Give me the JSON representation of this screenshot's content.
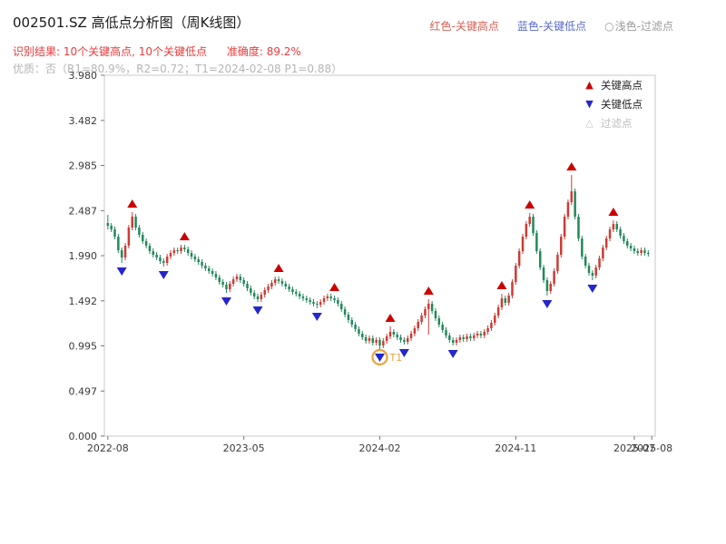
{
  "page": {
    "title": "002501.SZ 高低点分析图（周K线图）"
  },
  "header_legend": {
    "high": "红色-关键高点",
    "low": "蓝色-关键低点",
    "filter_icon": "○",
    "filter": "浅色-过滤点"
  },
  "subtitle": {
    "recognition": "识别结果: 10个关键高点, 10个关键低点",
    "accuracy": "准确度: 89.2%",
    "quality": "优质：否（R1=80.9%，R2=0.72；T1=2024-02-08 P1=0.88）"
  },
  "plot_legend": {
    "high": "关键高点",
    "low": "关键低点",
    "filtered": "过滤点"
  },
  "colors": {
    "result_red": "#e83b3b",
    "muted_gray": "#b5b5b5",
    "legend_high_red": "#d96055",
    "legend_low_blue": "#5a6ad0",
    "legend_filter_gray": "#9a9a9a",
    "marker_high": "#cc0000",
    "marker_low": "#2626cc",
    "filtered_orange": "#eda23a",
    "candle_up": "#cc3b33",
    "candle_down": "#22895a",
    "axis_frame": "#c9c9c9",
    "tick_text": "#3a3a3a"
  },
  "chart_data": {
    "type": "candlestick",
    "title": "002501.SZ 高低点分析图（周K线图）",
    "symbol": "002501.SZ",
    "interval": "weekly",
    "ylim": [
      0,
      3.98
    ],
    "y_ticks": [
      "0.000",
      "0.497",
      "0.995",
      "1.492",
      "1.990",
      "2.487",
      "2.985",
      "3.482",
      "3.980"
    ],
    "x_ticks": [
      {
        "week": 0,
        "label": "2022-08"
      },
      {
        "week": 39,
        "label": "2023-05"
      },
      {
        "week": 78,
        "label": "2024-02"
      },
      {
        "week": 117,
        "label": "2024-11"
      },
      {
        "week": 151,
        "label": "2025-07"
      },
      {
        "week": 156,
        "label": "2025-08"
      }
    ],
    "candles": [
      [
        2.35,
        2.44,
        2.28,
        2.32
      ],
      [
        2.32,
        2.35,
        2.25,
        2.28
      ],
      [
        2.28,
        2.31,
        2.17,
        2.2
      ],
      [
        2.2,
        2.23,
        2.02,
        2.05
      ],
      [
        2.05,
        2.08,
        1.91,
        1.97
      ],
      [
        1.97,
        2.13,
        1.94,
        2.1
      ],
      [
        2.1,
        2.33,
        2.07,
        2.3
      ],
      [
        2.3,
        2.47,
        2.27,
        2.42
      ],
      [
        2.42,
        2.45,
        2.27,
        2.3
      ],
      [
        2.3,
        2.33,
        2.19,
        2.22
      ],
      [
        2.22,
        2.25,
        2.12,
        2.15
      ],
      [
        2.15,
        2.18,
        2.07,
        2.1
      ],
      [
        2.1,
        2.13,
        2.01,
        2.04
      ],
      [
        2.04,
        2.07,
        1.97,
        2.0
      ],
      [
        2.0,
        2.03,
        1.94,
        1.97
      ],
      [
        1.97,
        2.0,
        1.9,
        1.93
      ],
      [
        1.93,
        1.96,
        1.87,
        1.91
      ],
      [
        1.91,
        2.01,
        1.88,
        1.98
      ],
      [
        1.98,
        2.05,
        1.95,
        2.02
      ],
      [
        2.02,
        2.08,
        1.99,
        2.05
      ],
      [
        2.05,
        2.08,
        2.01,
        2.04
      ],
      [
        2.04,
        2.11,
        2.01,
        2.08
      ],
      [
        2.08,
        2.11,
        2.03,
        2.06
      ],
      [
        2.06,
        2.09,
        1.99,
        2.02
      ],
      [
        2.02,
        2.05,
        1.95,
        1.98
      ],
      [
        1.98,
        2.01,
        1.92,
        1.95
      ],
      [
        1.95,
        1.98,
        1.89,
        1.92
      ],
      [
        1.92,
        1.95,
        1.85,
        1.88
      ],
      [
        1.88,
        1.91,
        1.82,
        1.85
      ],
      [
        1.85,
        1.88,
        1.79,
        1.82
      ],
      [
        1.82,
        1.85,
        1.76,
        1.79
      ],
      [
        1.79,
        1.82,
        1.72,
        1.75
      ],
      [
        1.75,
        1.78,
        1.67,
        1.7
      ],
      [
        1.7,
        1.73,
        1.64,
        1.67
      ],
      [
        1.67,
        1.7,
        1.58,
        1.62
      ],
      [
        1.62,
        1.71,
        1.59,
        1.68
      ],
      [
        1.68,
        1.76,
        1.65,
        1.73
      ],
      [
        1.73,
        1.79,
        1.7,
        1.76
      ],
      [
        1.76,
        1.79,
        1.69,
        1.72
      ],
      [
        1.72,
        1.75,
        1.65,
        1.68
      ],
      [
        1.68,
        1.71,
        1.6,
        1.63
      ],
      [
        1.63,
        1.66,
        1.55,
        1.58
      ],
      [
        1.58,
        1.61,
        1.51,
        1.54
      ],
      [
        1.54,
        1.57,
        1.48,
        1.51
      ],
      [
        1.51,
        1.59,
        1.48,
        1.56
      ],
      [
        1.56,
        1.64,
        1.53,
        1.61
      ],
      [
        1.61,
        1.68,
        1.58,
        1.65
      ],
      [
        1.65,
        1.72,
        1.62,
        1.69
      ],
      [
        1.69,
        1.76,
        1.66,
        1.73
      ],
      [
        1.73,
        1.76,
        1.68,
        1.71
      ],
      [
        1.71,
        1.74,
        1.65,
        1.68
      ],
      [
        1.68,
        1.71,
        1.62,
        1.65
      ],
      [
        1.65,
        1.68,
        1.59,
        1.62
      ],
      [
        1.62,
        1.65,
        1.56,
        1.59
      ],
      [
        1.59,
        1.62,
        1.54,
        1.57
      ],
      [
        1.57,
        1.6,
        1.51,
        1.54
      ],
      [
        1.54,
        1.57,
        1.49,
        1.52
      ],
      [
        1.52,
        1.55,
        1.47,
        1.5
      ],
      [
        1.5,
        1.53,
        1.45,
        1.48
      ],
      [
        1.48,
        1.51,
        1.43,
        1.46
      ],
      [
        1.46,
        1.49,
        1.41,
        1.45
      ],
      [
        1.45,
        1.51,
        1.42,
        1.48
      ],
      [
        1.48,
        1.55,
        1.45,
        1.52
      ],
      [
        1.52,
        1.57,
        1.49,
        1.54
      ],
      [
        1.54,
        1.57,
        1.49,
        1.52
      ],
      [
        1.52,
        1.55,
        1.47,
        1.5
      ],
      [
        1.5,
        1.53,
        1.43,
        1.46
      ],
      [
        1.46,
        1.49,
        1.37,
        1.4
      ],
      [
        1.4,
        1.43,
        1.31,
        1.34
      ],
      [
        1.34,
        1.37,
        1.25,
        1.28
      ],
      [
        1.28,
        1.31,
        1.2,
        1.23
      ],
      [
        1.23,
        1.26,
        1.15,
        1.18
      ],
      [
        1.18,
        1.21,
        1.1,
        1.13
      ],
      [
        1.13,
        1.16,
        1.06,
        1.09
      ],
      [
        1.09,
        1.12,
        1.02,
        1.05
      ],
      [
        1.05,
        1.11,
        1.02,
        1.08
      ],
      [
        1.08,
        1.11,
        1.0,
        1.03
      ],
      [
        1.03,
        1.09,
        1.0,
        1.06
      ],
      [
        1.06,
        1.09,
        0.96,
        1.0
      ],
      [
        1.0,
        1.08,
        0.97,
        1.05
      ],
      [
        1.05,
        1.13,
        1.02,
        1.1
      ],
      [
        1.1,
        1.21,
        1.07,
        1.15
      ],
      [
        1.15,
        1.18,
        1.09,
        1.12
      ],
      [
        1.12,
        1.15,
        1.06,
        1.09
      ],
      [
        1.09,
        1.12,
        1.03,
        1.06
      ],
      [
        1.06,
        1.09,
        1.01,
        1.04
      ],
      [
        1.04,
        1.11,
        1.01,
        1.08
      ],
      [
        1.08,
        1.16,
        1.05,
        1.13
      ],
      [
        1.13,
        1.22,
        1.1,
        1.19
      ],
      [
        1.19,
        1.29,
        1.16,
        1.26
      ],
      [
        1.26,
        1.36,
        1.23,
        1.33
      ],
      [
        1.33,
        1.43,
        1.3,
        1.4
      ],
      [
        1.4,
        1.51,
        1.12,
        1.46
      ],
      [
        1.46,
        1.49,
        1.35,
        1.38
      ],
      [
        1.38,
        1.41,
        1.27,
        1.3
      ],
      [
        1.3,
        1.33,
        1.2,
        1.23
      ],
      [
        1.23,
        1.26,
        1.14,
        1.17
      ],
      [
        1.17,
        1.2,
        1.08,
        1.11
      ],
      [
        1.11,
        1.14,
        1.03,
        1.06
      ],
      [
        1.06,
        1.09,
        1.0,
        1.03
      ],
      [
        1.03,
        1.09,
        1.0,
        1.06
      ],
      [
        1.06,
        1.12,
        1.03,
        1.09
      ],
      [
        1.09,
        1.12,
        1.04,
        1.07
      ],
      [
        1.07,
        1.13,
        1.04,
        1.1
      ],
      [
        1.1,
        1.13,
        1.05,
        1.08
      ],
      [
        1.08,
        1.14,
        1.05,
        1.11
      ],
      [
        1.11,
        1.16,
        1.08,
        1.13
      ],
      [
        1.13,
        1.16,
        1.08,
        1.11
      ],
      [
        1.11,
        1.18,
        1.08,
        1.15
      ],
      [
        1.15,
        1.22,
        1.12,
        1.19
      ],
      [
        1.19,
        1.28,
        1.16,
        1.25
      ],
      [
        1.25,
        1.36,
        1.22,
        1.33
      ],
      [
        1.33,
        1.45,
        1.3,
        1.42
      ],
      [
        1.42,
        1.57,
        1.39,
        1.52
      ],
      [
        1.52,
        1.55,
        1.44,
        1.47
      ],
      [
        1.47,
        1.58,
        1.44,
        1.55
      ],
      [
        1.55,
        1.73,
        1.52,
        1.7
      ],
      [
        1.7,
        1.91,
        1.67,
        1.88
      ],
      [
        1.88,
        2.07,
        1.85,
        2.04
      ],
      [
        2.04,
        2.23,
        2.01,
        2.2
      ],
      [
        2.2,
        2.37,
        2.17,
        2.34
      ],
      [
        2.34,
        2.46,
        2.31,
        2.42
      ],
      [
        2.42,
        2.45,
        2.21,
        2.24
      ],
      [
        2.24,
        2.27,
        2.01,
        2.04
      ],
      [
        2.04,
        2.07,
        1.83,
        1.86
      ],
      [
        1.86,
        1.89,
        1.69,
        1.72
      ],
      [
        1.72,
        1.75,
        1.55,
        1.6
      ],
      [
        1.6,
        1.71,
        1.57,
        1.68
      ],
      [
        1.68,
        1.85,
        1.65,
        1.82
      ],
      [
        1.82,
        2.03,
        1.79,
        2.0
      ],
      [
        2.0,
        2.23,
        1.97,
        2.2
      ],
      [
        2.2,
        2.45,
        2.17,
        2.42
      ],
      [
        2.42,
        2.61,
        2.39,
        2.58
      ],
      [
        2.58,
        2.88,
        2.55,
        2.7
      ],
      [
        2.7,
        2.73,
        2.39,
        2.42
      ],
      [
        2.42,
        2.45,
        2.15,
        2.18
      ],
      [
        2.18,
        2.21,
        1.95,
        1.98
      ],
      [
        1.98,
        2.01,
        1.85,
        1.88
      ],
      [
        1.88,
        1.91,
        1.77,
        1.8
      ],
      [
        1.8,
        1.83,
        1.72,
        1.77
      ],
      [
        1.77,
        1.89,
        1.74,
        1.86
      ],
      [
        1.86,
        1.99,
        1.83,
        1.96
      ],
      [
        1.96,
        2.11,
        1.93,
        2.08
      ],
      [
        2.08,
        2.21,
        2.05,
        2.18
      ],
      [
        2.18,
        2.31,
        2.15,
        2.28
      ],
      [
        2.28,
        2.38,
        2.25,
        2.34
      ],
      [
        2.34,
        2.37,
        2.25,
        2.28
      ],
      [
        2.28,
        2.31,
        2.18,
        2.21
      ],
      [
        2.21,
        2.24,
        2.12,
        2.15
      ],
      [
        2.15,
        2.18,
        2.07,
        2.1
      ],
      [
        2.1,
        2.13,
        2.04,
        2.07
      ],
      [
        2.07,
        2.1,
        2.01,
        2.04
      ],
      [
        2.04,
        2.07,
        1.99,
        2.02
      ],
      [
        2.02,
        2.08,
        1.99,
        2.05
      ],
      [
        2.05,
        2.08,
        1.99,
        2.02
      ],
      [
        2.02,
        2.05,
        1.98,
        2.01
      ]
    ],
    "key_highs": [
      {
        "week": 7,
        "price": 2.47
      },
      {
        "week": 22,
        "price": 2.11
      },
      {
        "week": 49,
        "price": 1.76
      },
      {
        "week": 65,
        "price": 1.55
      },
      {
        "week": 81,
        "price": 1.21
      },
      {
        "week": 92,
        "price": 1.51
      },
      {
        "week": 113,
        "price": 1.57
      },
      {
        "week": 121,
        "price": 2.46
      },
      {
        "week": 133,
        "price": 2.88
      },
      {
        "week": 145,
        "price": 2.38
      }
    ],
    "key_lows": [
      {
        "week": 4,
        "price": 1.91
      },
      {
        "week": 16,
        "price": 1.87
      },
      {
        "week": 34,
        "price": 1.58
      },
      {
        "week": 43,
        "price": 1.48
      },
      {
        "week": 60,
        "price": 1.41
      },
      {
        "week": 78,
        "price": 0.96
      },
      {
        "week": 85,
        "price": 1.01
      },
      {
        "week": 99,
        "price": 1.0
      },
      {
        "week": 126,
        "price": 1.55
      },
      {
        "week": 139,
        "price": 1.72
      }
    ],
    "filtered_point": {
      "week": 78,
      "price": 0.96,
      "label": "T1"
    },
    "legend_position": "upper-right",
    "grid": false
  }
}
